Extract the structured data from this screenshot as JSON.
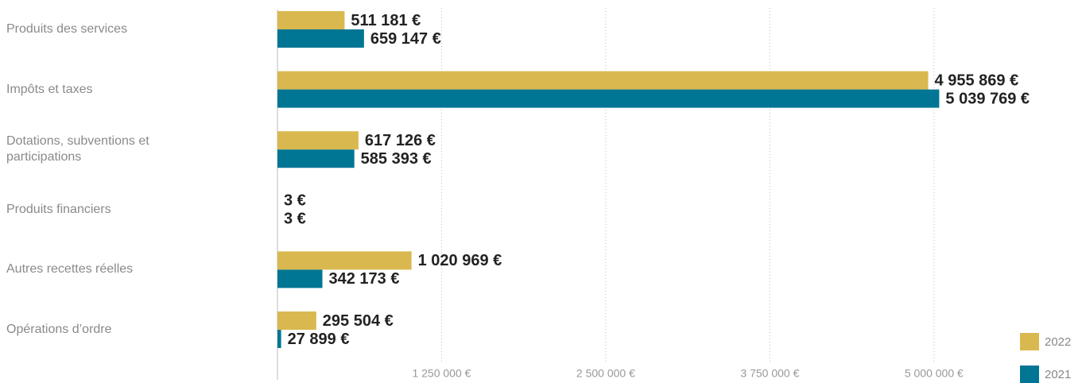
{
  "chart_data": {
    "type": "hbar",
    "categories": [
      "Produits des services",
      "Impôts et taxes",
      "Dotations, subventions et participations",
      "Produits financiers",
      "Autres recettes réelles",
      "Opérations d’ordre"
    ],
    "series": [
      {
        "name": "2022",
        "color": "#d9b84f",
        "values": [
          511181,
          4955869,
          617126,
          3,
          1020969,
          295504
        ],
        "value_labels": [
          "511 181 €",
          "4 955 869 €",
          "617 126 €",
          "3 €",
          "1 020 969 €",
          "295 504 €"
        ]
      },
      {
        "name": "2021",
        "color": "#007694",
        "values": [
          659147,
          5039769,
          585393,
          3,
          342173,
          27899
        ],
        "value_labels": [
          "659 147 €",
          "5 039 769 €",
          "585 393 €",
          "3 €",
          "342 173 €",
          "27 899 €"
        ]
      }
    ],
    "xlim": [
      0,
      6000000
    ],
    "xticks": [
      {
        "value": 1250000,
        "label": "1 250 000 €"
      },
      {
        "value": 2500000,
        "label": "2 500 000 €"
      },
      {
        "value": 3750000,
        "label": "3 750 000 €"
      },
      {
        "value": 5000000,
        "label": "5 000 000 €"
      }
    ],
    "grid": true,
    "legend": "bottom-right"
  }
}
